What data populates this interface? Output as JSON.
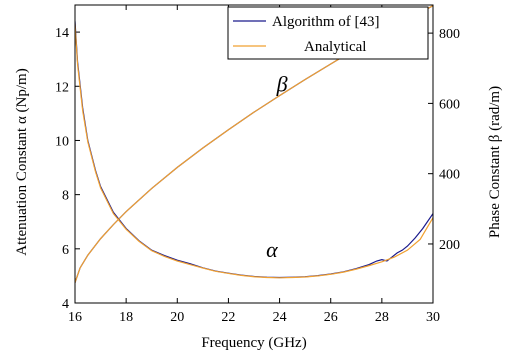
{
  "chart_data": {
    "type": "line",
    "xlabel": "Frequency (GHz)",
    "ylabel_left": "Attenuation Constant α (Np/m)",
    "ylabel_right": "Phase Constant β (rad/m)",
    "xlim": [
      16,
      30
    ],
    "ylim_left": [
      4,
      15
    ],
    "ylim_right": [
      32,
      880
    ],
    "x_ticks": [
      16,
      18,
      20,
      22,
      24,
      26,
      28,
      30
    ],
    "y_ticks_left": [
      4,
      6,
      8,
      10,
      12,
      14
    ],
    "y_ticks_right": [
      200,
      400,
      600,
      800
    ],
    "grid": false,
    "legend": {
      "placement": "top-right",
      "entries": [
        {
          "name": "Algorithm of [43]",
          "color": "#1a1a8c"
        },
        {
          "name": "Analytical",
          "color": "#f0a030"
        }
      ]
    },
    "annotations": [
      {
        "text": "β",
        "x": 24.1,
        "axis": "left",
        "y": 11.8
      },
      {
        "text": "α",
        "x": 23.7,
        "axis": "left",
        "y": 5.7
      }
    ],
    "series": [
      {
        "name": "Algorithm of [43]",
        "quantity": "alpha",
        "axis": "left",
        "color": "#1a1a8c",
        "x": [
          16.0,
          16.1,
          16.3,
          16.5,
          16.8,
          17.0,
          17.5,
          18.0,
          18.5,
          19.0,
          19.5,
          20.0,
          20.5,
          21.0,
          21.5,
          22.0,
          22.5,
          23.0,
          23.5,
          24.0,
          24.5,
          25.0,
          25.5,
          26.0,
          26.5,
          27.0,
          27.5,
          27.8,
          28.0,
          28.2,
          28.4,
          28.6,
          28.8,
          29.0,
          29.3,
          29.6,
          30.0
        ],
        "y": [
          14.4,
          12.9,
          11.2,
          10.0,
          8.9,
          8.3,
          7.35,
          6.75,
          6.3,
          5.95,
          5.75,
          5.58,
          5.45,
          5.3,
          5.18,
          5.1,
          5.03,
          4.98,
          4.95,
          4.94,
          4.95,
          4.97,
          5.01,
          5.07,
          5.15,
          5.27,
          5.42,
          5.55,
          5.6,
          5.55,
          5.7,
          5.85,
          5.95,
          6.1,
          6.4,
          6.75,
          7.3
        ]
      },
      {
        "name": "Analytical",
        "quantity": "alpha",
        "axis": "left",
        "color": "#f0a030",
        "x": [
          16.0,
          16.1,
          16.3,
          16.5,
          16.8,
          17.0,
          17.5,
          18.0,
          18.5,
          19.0,
          19.5,
          20.0,
          20.5,
          21.0,
          21.5,
          22.0,
          22.5,
          23.0,
          23.5,
          24.0,
          24.5,
          25.0,
          25.5,
          26.0,
          26.5,
          27.0,
          27.5,
          28.0,
          28.5,
          29.0,
          29.5,
          30.0
        ],
        "y": [
          14.3,
          12.8,
          11.1,
          9.95,
          8.85,
          8.25,
          7.3,
          6.72,
          6.28,
          5.93,
          5.72,
          5.55,
          5.42,
          5.29,
          5.17,
          5.09,
          5.02,
          4.97,
          4.94,
          4.93,
          4.94,
          4.96,
          5.0,
          5.06,
          5.14,
          5.25,
          5.38,
          5.52,
          5.7,
          5.95,
          6.35,
          7.15
        ]
      },
      {
        "name": "Algorithm of [43]",
        "quantity": "beta",
        "axis": "right",
        "color": "#1a1a8c",
        "x": [
          16.0,
          16.2,
          16.5,
          17.0,
          17.5,
          18.0,
          19.0,
          20.0,
          21.0,
          22.0,
          23.0,
          24.0,
          25.0,
          26.0,
          27.0,
          28.0,
          29.0,
          30.0
        ],
        "y": [
          90,
          132,
          168,
          215,
          255,
          292,
          358,
          418,
          473,
          525,
          575,
          622,
          668,
          712,
          756,
          798,
          838,
          878
        ]
      },
      {
        "name": "Analytical",
        "quantity": "beta",
        "axis": "right",
        "color": "#f0a030",
        "x": [
          16.0,
          16.2,
          16.5,
          17.0,
          17.5,
          18.0,
          19.0,
          20.0,
          21.0,
          22.0,
          23.0,
          24.0,
          25.0,
          26.0,
          27.0,
          28.0,
          29.0,
          30.0
        ],
        "y": [
          90,
          132,
          168,
          215,
          255,
          292,
          358,
          418,
          473,
          525,
          575,
          622,
          668,
          712,
          756,
          798,
          838,
          878
        ]
      }
    ]
  }
}
